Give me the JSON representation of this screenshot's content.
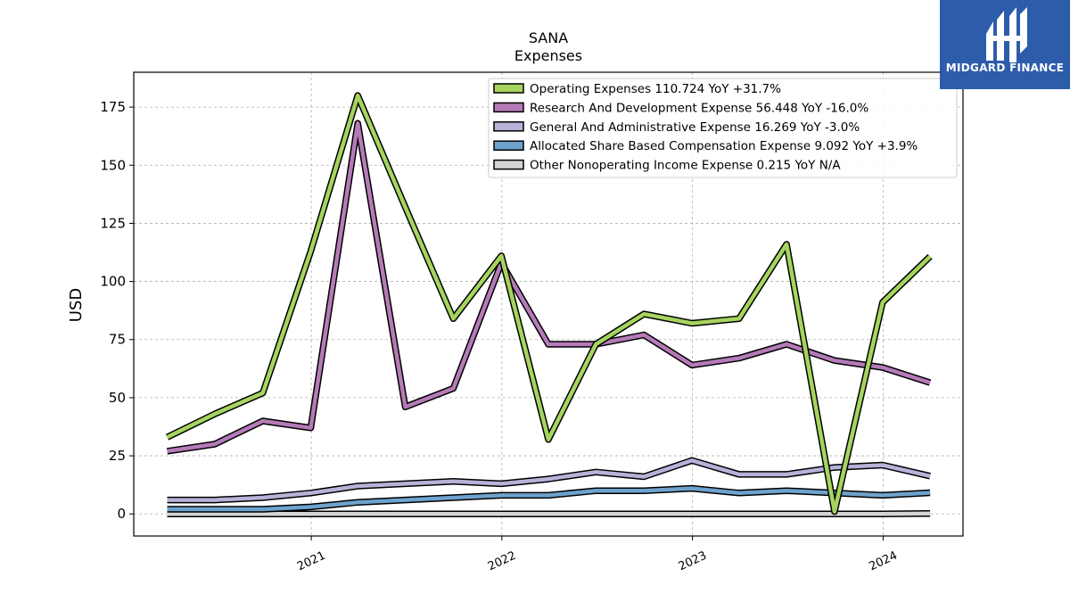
{
  "logo": {
    "text": "MIDGARD FINANCE"
  },
  "chart_data": {
    "type": "line",
    "title": "SANA",
    "subtitle": "Expenses",
    "xlabel": "",
    "ylabel": "USD",
    "x": [
      "2020-03-31",
      "2020-06-30",
      "2020-09-30",
      "2020-12-31",
      "2021-03-31",
      "2021-06-30",
      "2021-09-30",
      "2021-12-31",
      "2022-03-31",
      "2022-06-30",
      "2022-09-30",
      "2022-12-31",
      "2023-03-31",
      "2023-06-30",
      "2023-09-30",
      "2023-12-31",
      "2024-03-31"
    ],
    "xlim": [
      "2020-01-27",
      "2024-06-02"
    ],
    "xticks": [
      "2021",
      "2022",
      "2023",
      "2024"
    ],
    "ylim": [
      -9.5,
      190
    ],
    "yticks": [
      0,
      25,
      50,
      75,
      100,
      125,
      150,
      175
    ],
    "grid": true,
    "legend_position": "top-right",
    "series": [
      {
        "name": "Operating Expenses",
        "legend": "Operating Expenses  110.724 YoY +31.7%",
        "color": "#a6d45f",
        "values": [
          33,
          43,
          52,
          113,
          180,
          132,
          84,
          111,
          32,
          73,
          86,
          82,
          84,
          116,
          1,
          91,
          110.724
        ]
      },
      {
        "name": "Research And Development Expense",
        "legend": "Research And Development Expense  56.448 YoY -16.0%",
        "color": "#b57ab8",
        "values": [
          27,
          30,
          40,
          37,
          168,
          46,
          54,
          108,
          73,
          73,
          77,
          64,
          67,
          73,
          66,
          63,
          56.448
        ]
      },
      {
        "name": "General And Administrative Expense",
        "legend": "General And Administrative Expense  16.269 YoY -3.0%",
        "color": "#b7b2d8",
        "values": [
          6,
          6,
          7,
          9,
          12,
          13,
          14,
          13,
          15,
          18,
          16,
          23,
          17,
          17,
          20,
          21,
          16.269
        ]
      },
      {
        "name": "Allocated Share Based Compensation Expense",
        "legend": "Allocated Share Based Compensation Expense  9.092 YoY +3.9%",
        "color": "#6ea2cc",
        "values": [
          2,
          2,
          2,
          3,
          5,
          6,
          7,
          8,
          8,
          10,
          10,
          11,
          9,
          10,
          9,
          8,
          9.092
        ]
      },
      {
        "name": "Other Nonoperating Income Expense",
        "legend": "Other Nonoperating Income Expense  0.215 YoY N/A",
        "color": "#d4d4d4",
        "values": [
          0,
          0,
          0,
          0,
          0,
          0,
          0,
          0,
          0,
          0,
          0,
          0,
          0,
          0,
          0,
          0,
          0.215
        ]
      }
    ]
  }
}
